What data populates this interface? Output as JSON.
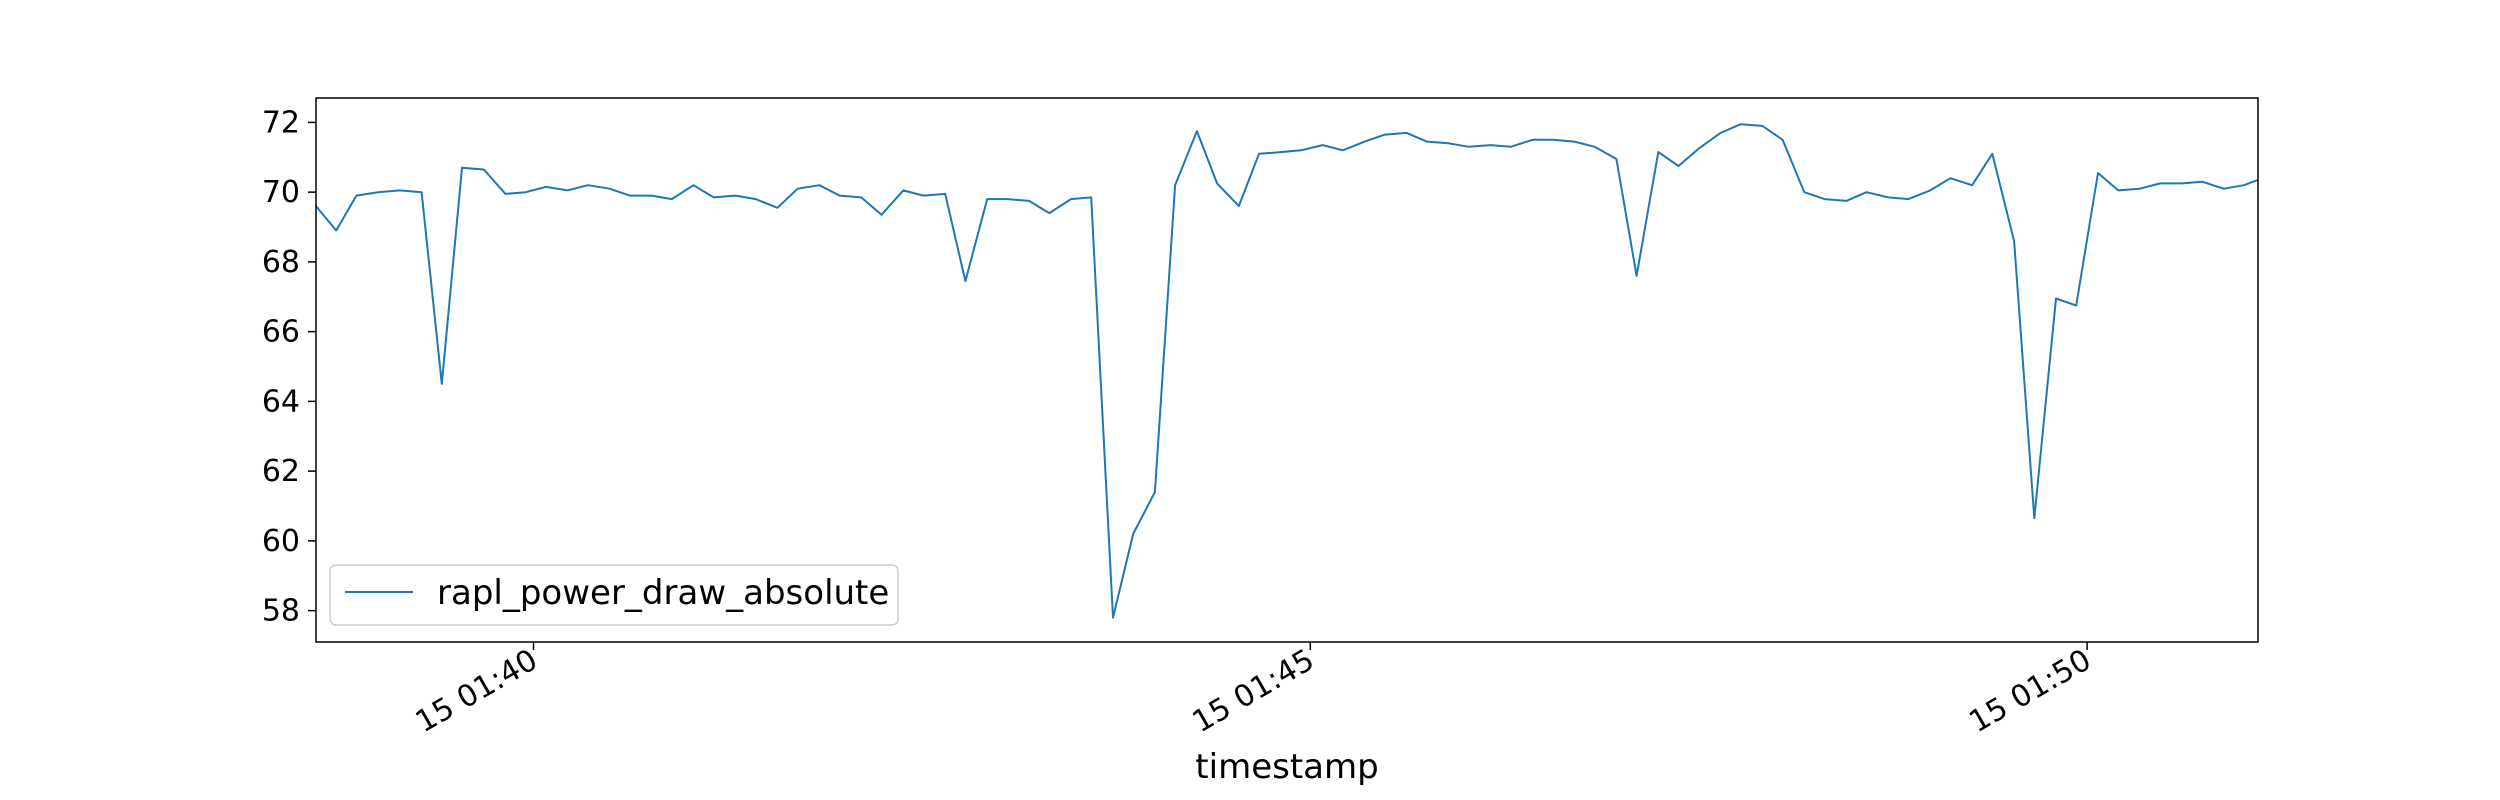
{
  "chart_data": {
    "type": "line",
    "xlabel": "timestamp",
    "ylabel": "",
    "ylim": [
      57.1,
      72.7
    ],
    "xlim_minutes": [
      38.6,
      51.1
    ],
    "x_ticks": [
      {
        "value": 40,
        "label": "15 01:40"
      },
      {
        "value": 45,
        "label": "15 01:45"
      },
      {
        "value": 50,
        "label": "15 01:50"
      }
    ],
    "y_ticks": [
      58,
      60,
      62,
      64,
      66,
      68,
      70,
      72
    ],
    "grid": false,
    "legend_position": "lower-left",
    "series": [
      {
        "name": "rapl_power_draw_absolute",
        "color": "#1f77b4",
        "x": [
          38.6,
          38.73,
          38.86,
          39.0,
          39.14,
          39.28,
          39.41,
          39.54,
          39.68,
          39.82,
          39.95,
          40.08,
          40.22,
          40.35,
          40.49,
          40.62,
          40.76,
          40.89,
          41.03,
          41.16,
          41.3,
          41.43,
          41.57,
          41.7,
          41.84,
          41.97,
          42.11,
          42.24,
          42.38,
          42.51,
          42.65,
          42.78,
          42.92,
          43.05,
          43.19,
          43.32,
          43.46,
          43.59,
          43.73,
          43.86,
          44.0,
          44.13,
          44.27,
          44.4,
          44.54,
          44.67,
          44.81,
          44.94,
          45.08,
          45.21,
          45.35,
          45.48,
          45.62,
          45.75,
          45.89,
          46.02,
          46.16,
          46.29,
          46.43,
          46.56,
          46.7,
          46.83,
          46.97,
          47.1,
          47.24,
          47.37,
          47.5,
          47.64,
          47.77,
          47.91,
          48.04,
          48.18,
          48.31,
          48.45,
          48.58,
          48.72,
          48.85,
          48.99,
          49.12,
          49.26,
          49.39,
          49.53,
          49.66,
          49.8,
          49.93,
          50.07,
          50.2,
          50.34,
          50.47,
          50.61,
          50.74,
          50.88,
          51.01,
          51.1
        ],
        "y": [
          69.6,
          68.9,
          69.9,
          70.0,
          70.05,
          70.0,
          64.5,
          70.7,
          70.65,
          69.95,
          70.0,
          70.15,
          70.05,
          70.2,
          70.1,
          69.9,
          69.9,
          69.8,
          70.2,
          69.85,
          69.9,
          69.8,
          69.55,
          70.1,
          70.2,
          69.9,
          69.85,
          69.35,
          70.05,
          69.9,
          69.95,
          67.45,
          69.8,
          69.8,
          69.75,
          69.4,
          69.8,
          69.85,
          57.8,
          60.2,
          61.4,
          70.2,
          71.75,
          70.25,
          69.6,
          71.1,
          71.15,
          71.2,
          71.35,
          71.2,
          71.45,
          71.65,
          71.7,
          71.45,
          71.4,
          71.3,
          71.35,
          71.3,
          71.5,
          71.5,
          71.45,
          71.3,
          70.95,
          67.6,
          71.15,
          70.75,
          71.25,
          71.7,
          71.95,
          71.9,
          71.5,
          70.0,
          69.8,
          69.75,
          70.0,
          69.85,
          69.8,
          70.05,
          70.4,
          70.2,
          71.1,
          68.6,
          60.65,
          66.95,
          66.75,
          70.55,
          70.05,
          70.1,
          70.25,
          70.25,
          70.3,
          70.1,
          70.2,
          70.35
        ]
      }
    ]
  }
}
